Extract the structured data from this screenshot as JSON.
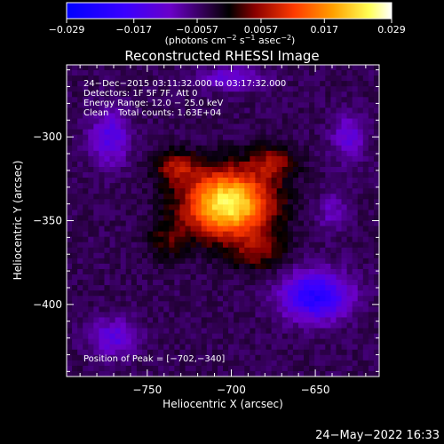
{
  "chart_data": {
    "type": "heatmap",
    "title": "Reconstructed RHESSI Image",
    "xlabel": "Heliocentric X (arcsec)",
    "ylabel": "Heliocentric Y (arcsec)",
    "xlim": [
      -798,
      -612
    ],
    "ylim": [
      -443,
      -257
    ],
    "x_ticks": [
      -750,
      -700,
      -650
    ],
    "y_ticks": [
      -300,
      -350,
      -400
    ],
    "x_tick_labels": [
      "−750",
      "−700",
      "−650"
    ],
    "y_tick_labels": [
      "−300",
      "−350",
      "−400"
    ],
    "colorbar": {
      "range": [
        -0.029,
        0.029
      ],
      "tick_labels": [
        "−0.029",
        "−0.017",
        "−0.0057",
        "0.0057",
        "0.017",
        "0.029"
      ],
      "tick_values": [
        -0.029,
        -0.017,
        -0.0057,
        0.0057,
        0.017,
        0.029
      ],
      "unit_parts": [
        "(photons cm",
        "−2",
        " s",
        "−1",
        " asec",
        "−2",
        ")"
      ]
    },
    "grid": false,
    "annotations": {
      "line1": "24−Dec−2015 03:11:32.000 to 03:17:32.000",
      "line2": "Detectors: 1F 5F 7F, Att 0",
      "line3": "Energy Range: 12.0 − 25.0 keV",
      "line4_a": "Clean",
      "line4_b": "Total counts: 1.63E+04",
      "peak": "Position of Peak = [−702,−340]"
    },
    "peak_position": [
      -702,
      -340
    ],
    "components": [
      {
        "kind": "positive",
        "x": -702,
        "y": -340,
        "sx": 18,
        "sy": 14,
        "amp": 0.03
      },
      {
        "kind": "positive",
        "x": -733,
        "y": -318,
        "sx": 9,
        "sy": 7,
        "amp": 0.01
      },
      {
        "kind": "positive",
        "x": -675,
        "y": -315,
        "sx": 10,
        "sy": 7,
        "amp": 0.009
      },
      {
        "kind": "positive",
        "x": -683,
        "y": -368,
        "sx": 11,
        "sy": 8,
        "amp": 0.008
      },
      {
        "kind": "positive",
        "x": -738,
        "y": -362,
        "sx": 8,
        "sy": 8,
        "amp": 0.006
      },
      {
        "kind": "negative",
        "x": -650,
        "y": -395,
        "sx": 14,
        "sy": 10,
        "amp": -0.018
      },
      {
        "kind": "negative",
        "x": -772,
        "y": -300,
        "sx": 8,
        "sy": 12,
        "amp": -0.01
      },
      {
        "kind": "negative",
        "x": -700,
        "y": -265,
        "sx": 14,
        "sy": 5,
        "amp": -0.008
      },
      {
        "kind": "negative",
        "x": -630,
        "y": -300,
        "sx": 7,
        "sy": 10,
        "amp": -0.008
      },
      {
        "kind": "negative",
        "x": -770,
        "y": -420,
        "sx": 10,
        "sy": 8,
        "amp": -0.009
      },
      {
        "kind": "negative",
        "x": -640,
        "y": -345,
        "sx": 6,
        "sy": 8,
        "amp": -0.006
      }
    ]
  },
  "footer": {
    "timestamp": "24−May−2022 16:33"
  },
  "colors": {
    "background": "#000000",
    "axes": "#ffffff",
    "colorbar_stops": [
      "#0000ff",
      "#5500c8",
      "#3a003a",
      "#000000",
      "#aa0000",
      "#ff4400",
      "#ffaa00",
      "#ffff66",
      "#ffffff"
    ]
  }
}
